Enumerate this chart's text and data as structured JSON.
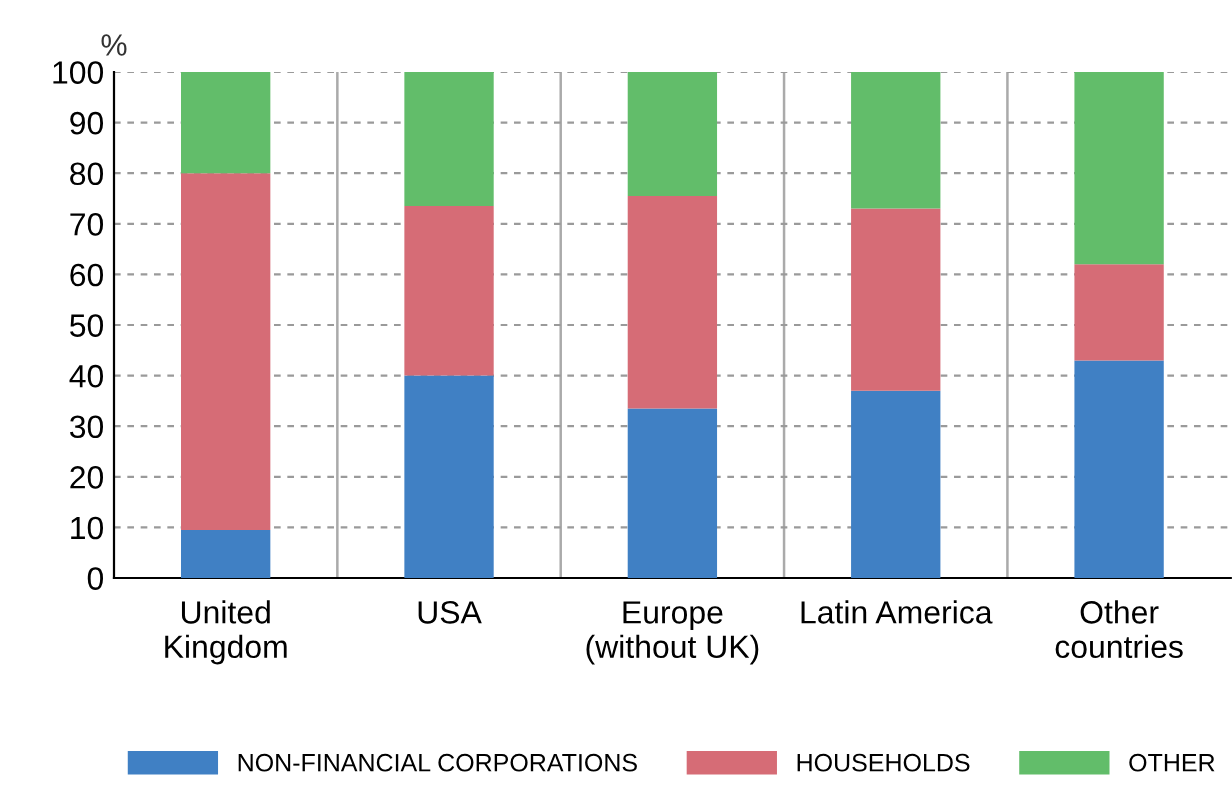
{
  "chart_data": {
    "type": "bar",
    "stacked": true,
    "ylabel": "%",
    "categories": [
      "United\nKingdom",
      "USA",
      "Europe\n(without UK)",
      "Latin America",
      "Other\ncountries"
    ],
    "series": [
      {
        "name": "NON-FINANCIAL CORPORATIONS",
        "color": "#4080c4",
        "values": [
          9.5,
          40,
          33.5,
          37,
          43
        ]
      },
      {
        "name": "HOUSEHOLDS",
        "color": "#d66c76",
        "values": [
          70.5,
          33.5,
          42,
          36,
          19
        ]
      },
      {
        "name": "OTHER",
        "color": "#62bd6a",
        "values": [
          20,
          26.5,
          24.5,
          27,
          38
        ]
      }
    ],
    "ylim": [
      0,
      100
    ],
    "yticks": [
      0,
      10,
      20,
      30,
      40,
      50,
      60,
      70,
      80,
      90,
      100
    ],
    "grid": true,
    "legend": "bottom"
  }
}
